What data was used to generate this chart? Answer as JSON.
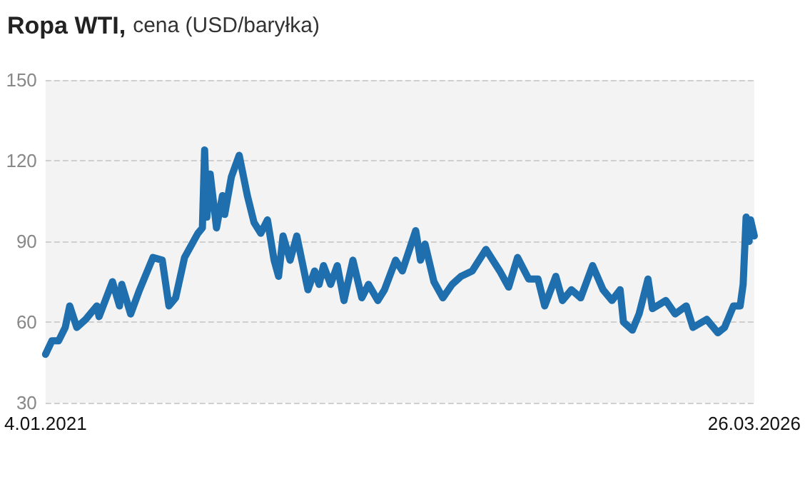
{
  "chart_data": {
    "type": "line",
    "title": "Ropa WTI,",
    "subtitle": "cena (USD/baryłka)",
    "x": [
      "2021-01-04",
      "2021-01-21",
      "2021-02-08",
      "2021-02-26",
      "2021-03-10",
      "2021-03-29",
      "2021-04-22",
      "2021-05-22",
      "2021-05-28",
      "2021-07-03",
      "2021-07-22",
      "2021-07-28",
      "2021-08-21",
      "2021-09-14",
      "2021-10-20",
      "2021-11-14",
      "2021-12-02",
      "2021-12-20",
      "2022-01-13",
      "2022-02-18",
      "2022-03-02",
      "2022-03-08",
      "2022-03-14",
      "2022-03-23",
      "2022-04-09",
      "2022-04-25",
      "2022-05-01",
      "2022-05-19",
      "2022-06-09",
      "2022-07-01",
      "2022-07-19",
      "2022-08-06",
      "2022-08-24",
      "2022-09-11",
      "2022-09-23",
      "2022-10-05",
      "2022-10-24",
      "2022-11-11",
      "2022-12-11",
      "2022-12-29",
      "2023-01-10",
      "2023-01-22",
      "2023-02-10",
      "2023-02-28",
      "2023-03-18",
      "2023-04-11",
      "2023-05-05",
      "2023-05-23",
      "2023-06-17",
      "2023-07-05",
      "2023-08-04",
      "2023-08-22",
      "2023-09-27",
      "2023-10-10",
      "2023-10-22",
      "2023-11-15",
      "2023-12-09",
      "2024-01-03",
      "2024-01-27",
      "2024-02-26",
      "2024-04-03",
      "2024-05-10",
      "2024-06-03",
      "2024-06-27",
      "2024-07-27",
      "2024-08-21",
      "2024-09-08",
      "2024-10-08",
      "2024-10-26",
      "2024-11-19",
      "2024-12-14",
      "2025-01-15",
      "2025-02-12",
      "2025-03-08",
      "2025-03-30",
      "2025-04-08",
      "2025-05-02",
      "2025-05-20",
      "2025-06-13",
      "2025-06-25",
      "2025-07-31",
      "2025-08-25",
      "2025-09-24",
      "2025-10-12",
      "2025-11-18",
      "2025-12-18",
      "2026-01-05",
      "2026-01-29",
      "2026-02-16",
      "2026-02-24",
      "2026-03-04",
      "2026-03-12",
      "2026-03-16",
      "2026-03-26"
    ],
    "series": [
      {
        "color": "#1f6fae",
        "values": [
          48,
          53,
          53,
          58,
          66,
          58,
          61,
          66,
          62,
          75,
          66,
          74,
          63,
          72,
          84,
          83,
          66,
          69,
          84,
          93,
          95,
          124,
          99,
          115,
          95,
          107,
          100,
          114,
          122,
          107,
          97,
          93,
          98,
          83,
          77,
          92,
          83,
          92,
          72,
          79,
          74,
          81,
          74,
          81,
          68,
          83,
          69,
          74,
          68,
          72,
          83,
          79,
          94,
          83,
          89,
          75,
          69,
          74,
          77,
          79,
          87,
          79,
          73,
          84,
          76,
          76,
          66,
          77,
          68,
          72,
          69,
          81,
          72,
          68,
          72,
          60,
          57,
          63,
          76,
          65,
          68,
          63,
          66,
          58,
          61,
          56,
          58,
          66,
          66,
          74,
          99,
          90,
          98,
          92
        ]
      }
    ],
    "xlim": [
      "2021-01-04",
      "2026-03-26"
    ],
    "xticks": [
      {
        "value": "2021-01-04",
        "label": "4.01.2021"
      },
      {
        "value": "2026-03-26",
        "label": "26.03.2026"
      }
    ],
    "ylim": [
      30,
      150
    ],
    "yticks": [
      30,
      60,
      90,
      120,
      150
    ],
    "grid": "y",
    "line_style": "solid",
    "marker": "none"
  }
}
